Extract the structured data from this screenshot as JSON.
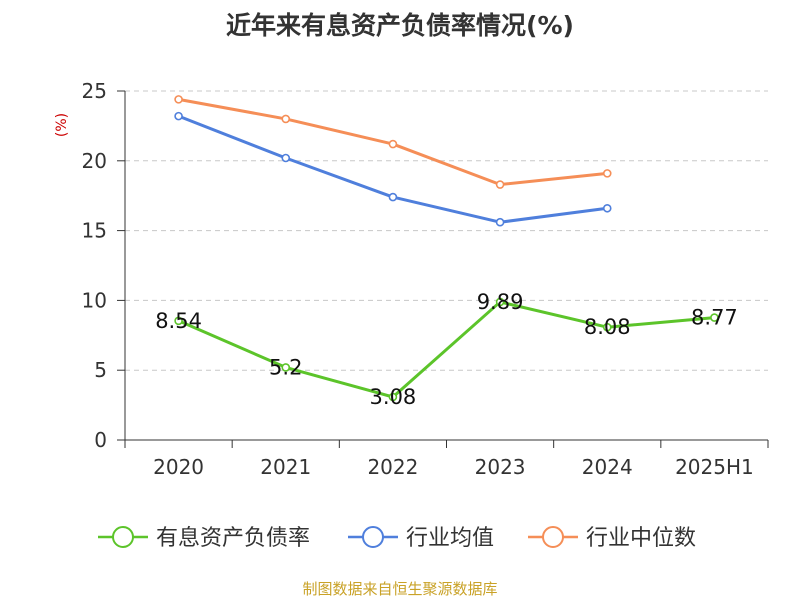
{
  "chart_data": {
    "type": "line",
    "title": "近年来有息资产负债率情况(%)",
    "ylabel": "(%)",
    "xlabel": "",
    "categories": [
      "2020",
      "2021",
      "2022",
      "2023",
      "2024",
      "2025H1"
    ],
    "ylim": [
      0,
      25
    ],
    "yticks": [
      0,
      5,
      10,
      15,
      20,
      25
    ],
    "grid": true,
    "legend_position": "bottom",
    "series": [
      {
        "name": "有息资产负债率",
        "color": "#5cc42a",
        "values": [
          8.54,
          5.2,
          3.08,
          9.89,
          8.08,
          8.77
        ],
        "labels": [
          "8.54",
          "5.2",
          "3.08",
          "9.89",
          "8.08",
          "8.77"
        ]
      },
      {
        "name": "行业均值",
        "color": "#4f7fdc",
        "values": [
          23.2,
          20.2,
          17.4,
          15.6,
          16.6,
          null
        ]
      },
      {
        "name": "行业中位数",
        "color": "#f58e57",
        "values": [
          24.4,
          23.0,
          21.2,
          18.3,
          19.1,
          null
        ]
      }
    ],
    "source": "制图数据来自恒生聚源数据库"
  }
}
